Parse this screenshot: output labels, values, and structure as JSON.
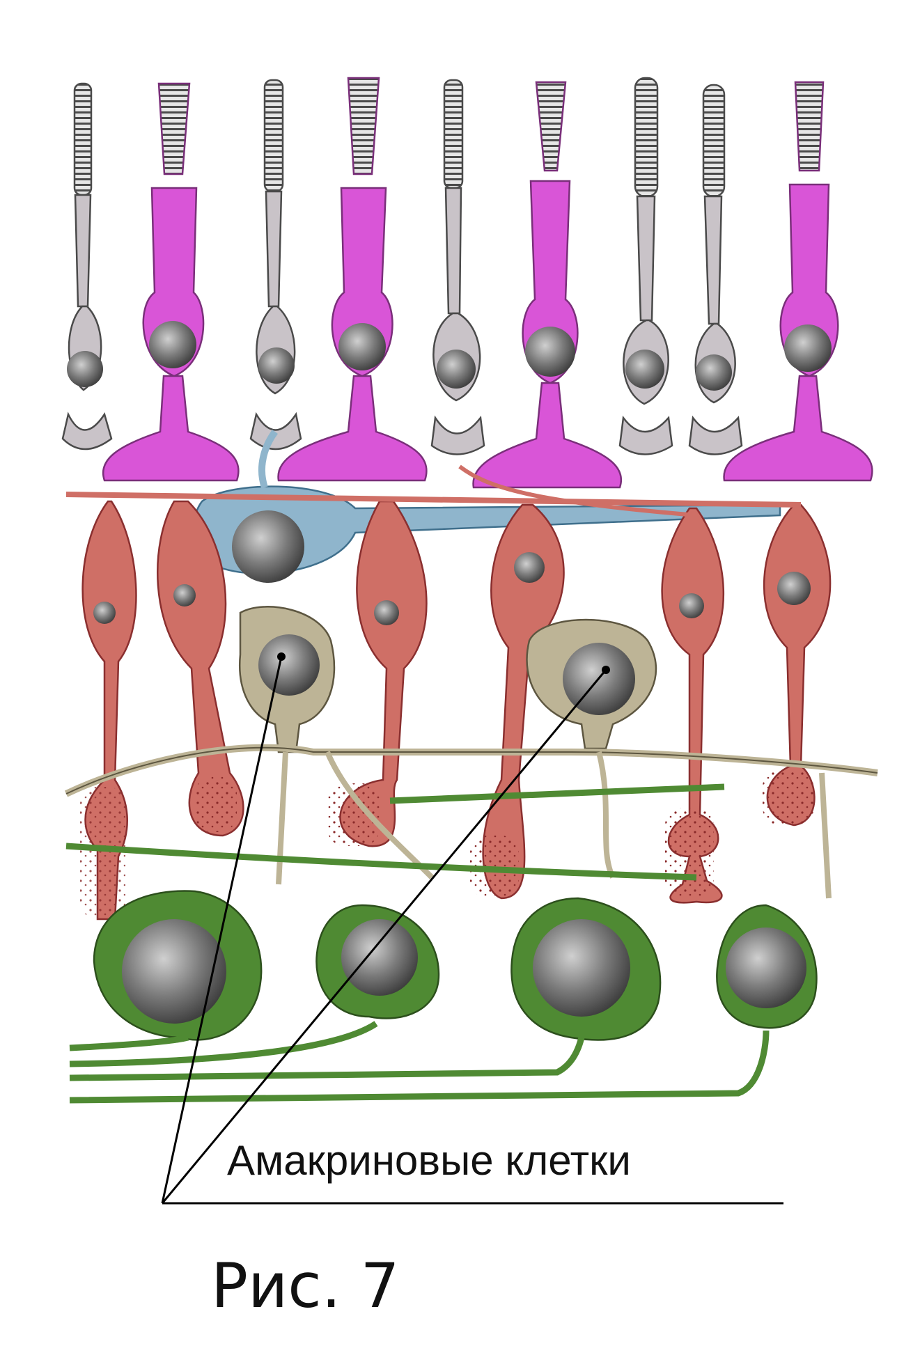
{
  "figure": {
    "label": "Амакриновые клетки",
    "caption": "Рис. 7"
  },
  "colors": {
    "rod": "#c9c3c8",
    "cone": "#d955d7",
    "bipolar": "#cf6f66",
    "horizontal": "#8fb5cc",
    "amacrine": "#bdb496",
    "ganglion": "#4f8a33",
    "nucleus": "#6b6b6b"
  }
}
